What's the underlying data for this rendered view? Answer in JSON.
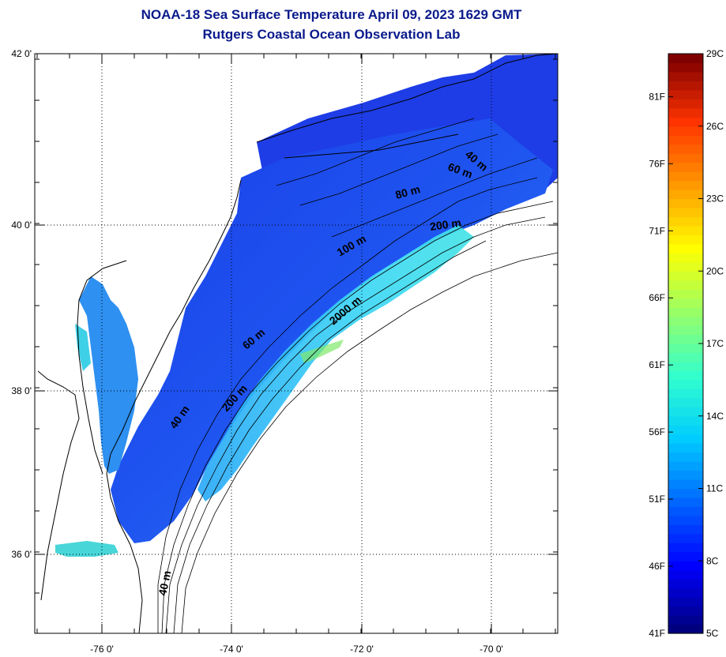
{
  "title": {
    "line1": "NOAA-18 Sea Surface Temperature April 09, 2023 1629 GMT",
    "line2": "Rutgers Coastal Ocean Observation Lab"
  },
  "map": {
    "lon_ticks": [
      "-76 0'",
      "-74 0'",
      "-72 0'",
      "-70 0'"
    ],
    "lat_ticks": [
      "42 0'",
      "40 0'",
      "38 0'",
      "36 0'"
    ],
    "contour_labels": [
      "40 m",
      "60 m",
      "80 m",
      "200 m",
      "100 m",
      "2000 m",
      "60 m",
      "40 m",
      "200 m",
      "40 m"
    ],
    "colors": {
      "land": "#ffffff",
      "cloud": "#ffffff",
      "grid": "#000000"
    }
  },
  "colorbar": {
    "celsius_labels": [
      "29C",
      "26C",
      "23C",
      "20C",
      "17C",
      "14C",
      "11C",
      "8C",
      "5C"
    ],
    "fahrenheit_labels": [
      "81F",
      "76F",
      "71F",
      "66F",
      "61F",
      "56F",
      "51F",
      "46F",
      "41F"
    ],
    "range_c": [
      5,
      29
    ],
    "colormap": [
      "#00007f",
      "#0000ff",
      "#0066ff",
      "#00ccff",
      "#33ffcc",
      "#99ff66",
      "#ffff00",
      "#ff9900",
      "#ff3300",
      "#7f0000"
    ]
  }
}
